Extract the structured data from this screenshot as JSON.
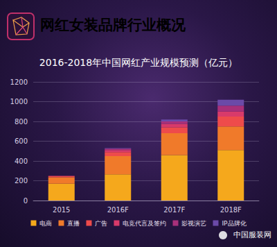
{
  "chart_data": {
    "type": "bar",
    "title": "网红女装品牌行业概况",
    "subtitle": "2016-2018年中国网红产业规模预测（亿元）",
    "categories": [
      "2015",
      "2016F",
      "2017F",
      "2018F"
    ],
    "series": [
      {
        "name": "电商",
        "color": "#f5a81c",
        "values": [
          170,
          265,
          460,
          510
        ]
      },
      {
        "name": "直播",
        "color": "#f07a2a",
        "values": [
          65,
          185,
          220,
          240
        ]
      },
      {
        "name": "广告",
        "color": "#ee4b4b",
        "values": [
          10,
          40,
          60,
          100
        ]
      },
      {
        "name": "电竞代言及签约",
        "color": "#d83a6a",
        "values": [
          5,
          20,
          35,
          50
        ]
      },
      {
        "name": "影视演艺",
        "color": "#a8307a",
        "values": [
          0,
          15,
          25,
          60
        ]
      },
      {
        "name": "IP品牌化",
        "color": "#6b4aa8",
        "values": [
          0,
          5,
          20,
          60
        ]
      }
    ],
    "ylim": [
      0,
      1200
    ],
    "yticks": [
      0,
      200,
      400,
      600,
      800,
      1000,
      1200
    ],
    "stacked": true,
    "grid": true,
    "legend": "bottom",
    "annotations": [
      "中国服装网"
    ]
  }
}
